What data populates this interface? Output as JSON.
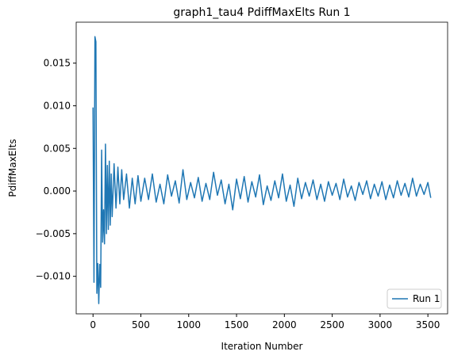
{
  "chart_data": {
    "type": "line",
    "title": "graph1_tau4 PdiffMaxElts Run 1",
    "x_label": "Iteration Number",
    "y_label": "PdiffMaxElts",
    "x": [
      0,
      10,
      20,
      30,
      40,
      50,
      60,
      70,
      80,
      90,
      100,
      110,
      120,
      130,
      140,
      150,
      160,
      170,
      180,
      190,
      200,
      220,
      240,
      260,
      280,
      300,
      320,
      350,
      380,
      410,
      440,
      470,
      500,
      540,
      580,
      620,
      660,
      700,
      740,
      780,
      820,
      860,
      900,
      940,
      980,
      1020,
      1060,
      1100,
      1140,
      1180,
      1220,
      1260,
      1300,
      1340,
      1380,
      1420,
      1460,
      1500,
      1540,
      1580,
      1620,
      1660,
      1700,
      1740,
      1780,
      1820,
      1860,
      1900,
      1940,
      1980,
      2020,
      2060,
      2100,
      2140,
      2180,
      2220,
      2260,
      2300,
      2340,
      2380,
      2420,
      2460,
      2500,
      2540,
      2580,
      2620,
      2660,
      2700,
      2740,
      2780,
      2820,
      2860,
      2900,
      2940,
      2980,
      3020,
      3060,
      3100,
      3140,
      3180,
      3220,
      3260,
      3300,
      3340,
      3380,
      3420,
      3460,
      3500,
      3530
    ],
    "series": [
      {
        "name": "Run 1",
        "color": "#1f77b4",
        "values": [
          0.0098,
          -0.0107,
          0.0181,
          0.0175,
          -0.012,
          -0.0085,
          -0.0132,
          -0.0086,
          -0.0113,
          0.0048,
          -0.006,
          -0.0022,
          -0.0062,
          0.0055,
          -0.005,
          0.003,
          -0.0045,
          0.0035,
          -0.004,
          0.002,
          -0.003,
          0.0032,
          -0.002,
          0.0028,
          -0.0015,
          0.0025,
          -0.001,
          0.002,
          -0.002,
          0.0015,
          -0.0015,
          0.0018,
          -0.0012,
          0.0015,
          -0.001,
          0.002,
          -0.0013,
          0.0008,
          -0.0015,
          0.0019,
          -0.0006,
          0.0012,
          -0.0014,
          0.0025,
          -0.001,
          0.001,
          -0.0008,
          0.0016,
          -0.0012,
          0.0009,
          -0.001,
          0.0022,
          -0.0005,
          0.0013,
          -0.0015,
          0.0008,
          -0.0022,
          0.0014,
          -0.0009,
          0.0017,
          -0.0013,
          0.0011,
          -0.0007,
          0.0019,
          -0.0016,
          0.0006,
          -0.0011,
          0.0012,
          -0.0008,
          0.002,
          -0.0012,
          0.0007,
          -0.0018,
          0.0015,
          -0.0009,
          0.001,
          -0.0006,
          0.0013,
          -0.001,
          0.0008,
          -0.0012,
          0.0011,
          -0.0005,
          0.0009,
          -0.001,
          0.0014,
          -0.0007,
          0.0006,
          -0.0011,
          0.001,
          -0.0004,
          0.0012,
          -0.0009,
          0.0008,
          -0.0006,
          0.0011,
          -0.001,
          0.0007,
          -0.0008,
          0.0012,
          -0.0005,
          0.0009,
          -0.0007,
          0.0015,
          -0.0006,
          0.0008,
          -0.0004,
          0.001,
          -0.0008
        ]
      }
    ],
    "xlim": [
      -176,
      3706
    ],
    "ylim": [
      -0.0144,
      0.0198
    ],
    "xticks": [
      0,
      500,
      1000,
      1500,
      2000,
      2500,
      3000,
      3500
    ],
    "yticks": [
      {
        "value": -0.01,
        "label": "−0.010"
      },
      {
        "value": -0.005,
        "label": "−0.005"
      },
      {
        "value": 0,
        "label": "0.000"
      },
      {
        "value": 0.005,
        "label": "0.005"
      },
      {
        "value": 0.01,
        "label": "0.010"
      },
      {
        "value": 0.015,
        "label": "0.015"
      }
    ],
    "legend": "lower right"
  }
}
